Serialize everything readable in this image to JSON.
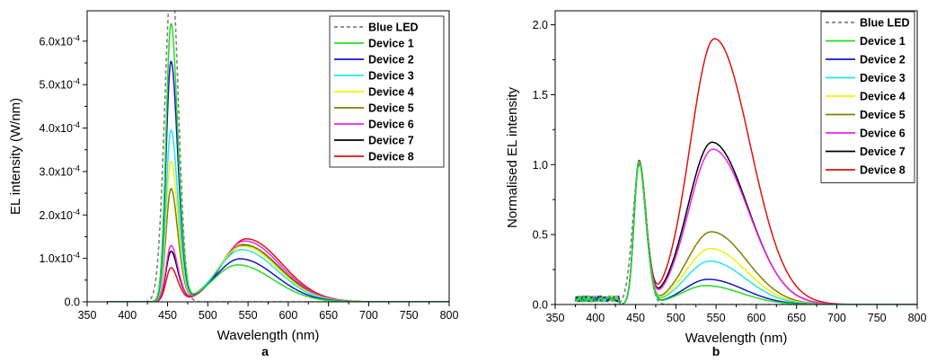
{
  "chart_data": [
    {
      "type": "line",
      "panel_label": "a",
      "xlabel": "Wavelength (nm)",
      "ylabel": "EL intensity (W/nm)",
      "xlim": [
        350,
        800
      ],
      "ylim": [
        0,
        0.00067
      ],
      "xticks": [
        350,
        400,
        450,
        500,
        550,
        600,
        650,
        700,
        750,
        800
      ],
      "yticks": [
        0,
        0.0001,
        0.0002,
        0.0003,
        0.0004,
        0.0005,
        0.0006
      ],
      "ytick_labels": [
        "0.0",
        "1.0x10",
        "2.0x10",
        "3.0x10",
        "4.0x10",
        "5.0x10",
        "6.0x10"
      ],
      "ytick_exponent": "-4",
      "legend_position": "top-right",
      "grid": false,
      "series": [
        {
          "name": "Blue LED",
          "color": "#808080",
          "dashed": true,
          "blue_peak": 0.00075,
          "green_peak": 0,
          "green_center": 550,
          "x": [
            375,
            420,
            430,
            440,
            445,
            450,
            455,
            460,
            465,
            470,
            480,
            490,
            500
          ],
          "values": [
            0,
            0,
            5e-06,
            0.00018,
            0.00042,
            0.00066,
            0.00075,
            0.00066,
            0.0004,
            0.00013,
            1e-05,
            0.0,
            0.0
          ]
        },
        {
          "name": "Device 1",
          "color": "#22dd22",
          "dashed": false,
          "blue_peak": 0.000628,
          "green_peak": 8.5e-05,
          "green_center": 537,
          "x": [
            400,
            440,
            454,
            470,
            490,
            537,
            600,
            700,
            800
          ],
          "values": [
            0,
            0.00014,
            0.000628,
            6e-05,
            1.2e-05,
            8.5e-05,
            3.5e-05,
            2e-06,
            0
          ]
        },
        {
          "name": "Device 2",
          "color": "#1515cc",
          "dashed": false,
          "blue_peak": 0.000543,
          "green_peak": 9.9e-05,
          "green_center": 540,
          "x": [
            400,
            440,
            454,
            470,
            490,
            540,
            600,
            700,
            800
          ],
          "values": [
            0,
            0.00012,
            0.000543,
            6e-05,
            1.3e-05,
            9.9e-05,
            4.5e-05,
            3e-06,
            0
          ]
        },
        {
          "name": "Device 3",
          "color": "#22e6ee",
          "dashed": false,
          "blue_peak": 0.000387,
          "green_peak": 0.00012,
          "green_center": 542,
          "x": [
            400,
            440,
            454,
            470,
            490,
            542,
            600,
            700,
            800
          ],
          "values": [
            0,
            9e-05,
            0.000387,
            5e-05,
            1.5e-05,
            0.00012,
            6e-05,
            4e-06,
            0
          ]
        },
        {
          "name": "Device 4",
          "color": "#f4f000",
          "dashed": false,
          "blue_peak": 0.000317,
          "green_peak": 0.000128,
          "green_center": 543,
          "x": [
            400,
            440,
            454,
            470,
            490,
            543,
            600,
            700,
            800
          ],
          "values": [
            0,
            7e-05,
            0.000317,
            4e-05,
            1.6e-05,
            0.000128,
            7e-05,
            5e-06,
            0
          ]
        },
        {
          "name": "Device 5",
          "color": "#808000",
          "dashed": false,
          "blue_peak": 0.000255,
          "green_peak": 0.000132,
          "green_center": 544,
          "x": [
            400,
            440,
            454,
            470,
            490,
            544,
            600,
            700,
            800
          ],
          "values": [
            0,
            6e-05,
            0.000255,
            4e-05,
            1.7e-05,
            0.000132,
            7.5e-05,
            6e-06,
            0
          ]
        },
        {
          "name": "Device 6",
          "color": "#ee22ee",
          "dashed": false,
          "blue_peak": 0.000126,
          "green_peak": 0.00014,
          "green_center": 546,
          "x": [
            400,
            440,
            454,
            470,
            490,
            546,
            600,
            700,
            800
          ],
          "values": [
            0,
            3e-05,
            0.000126,
            3e-05,
            1.8e-05,
            0.00014,
            8e-05,
            7e-06,
            0
          ]
        },
        {
          "name": "Device 7",
          "color": "#000000",
          "dashed": false,
          "blue_peak": 0.000113,
          "green_peak": 0.000131,
          "green_center": 545,
          "x": [
            400,
            440,
            454,
            470,
            490,
            545,
            600,
            700,
            800
          ],
          "values": [
            0,
            2.7e-05,
            0.000113,
            3e-05,
            1.7e-05,
            0.000131,
            7.7e-05,
            7e-06,
            0
          ]
        },
        {
          "name": "Device 8",
          "color": "#e01010",
          "dashed": false,
          "blue_peak": 7.6e-05,
          "green_peak": 0.000145,
          "green_center": 548,
          "x": [
            400,
            440,
            454,
            470,
            490,
            548,
            600,
            700,
            800
          ],
          "values": [
            0,
            1.8e-05,
            7.6e-05,
            2e-05,
            1.8e-05,
            0.000145,
            8.5e-05,
            8e-06,
            0
          ]
        }
      ]
    },
    {
      "type": "line",
      "panel_label": "b",
      "xlabel": "Wavelength (nm)",
      "ylabel": "Normalised EL intensity",
      "xlim": [
        350,
        800
      ],
      "ylim": [
        0,
        2.1
      ],
      "xticks": [
        350,
        400,
        450,
        500,
        550,
        600,
        650,
        700,
        750,
        800
      ],
      "yticks": [
        0,
        0.5,
        1.0,
        1.5,
        2.0
      ],
      "ytick_labels": [
        "0.0",
        "0.5",
        "1.0",
        "1.5",
        "2.0"
      ],
      "legend_position": "top-right",
      "grid": false,
      "series": [
        {
          "name": "Blue LED",
          "color": "#808080",
          "dashed": true,
          "blue_peak": 1.0,
          "green_peak": 0,
          "green_center": 550,
          "x": [
            375,
            430,
            445,
            455,
            465,
            480,
            500
          ],
          "values": [
            0,
            0.01,
            0.56,
            1.0,
            0.53,
            0.02,
            0
          ]
        },
        {
          "name": "Device 1",
          "color": "#22dd22",
          "dashed": false,
          "blue_peak": 1.0,
          "green_peak": 0.135,
          "green_center": 537,
          "x": [
            375,
            430,
            454,
            490,
            537,
            600,
            700,
            800
          ],
          "values": [
            0.01,
            0.05,
            1.0,
            0.06,
            0.135,
            0.055,
            0.003,
            0
          ]
        },
        {
          "name": "Device 2",
          "color": "#1515cc",
          "dashed": false,
          "blue_peak": 1.0,
          "green_peak": 0.18,
          "green_center": 540,
          "x": [
            375,
            430,
            454,
            490,
            540,
            600,
            700,
            800
          ],
          "values": [
            0.01,
            0.05,
            1.0,
            0.07,
            0.18,
            0.08,
            0.005,
            0
          ]
        },
        {
          "name": "Device 3",
          "color": "#22e6ee",
          "dashed": false,
          "blue_peak": 1.0,
          "green_peak": 0.31,
          "green_center": 542,
          "x": [
            375,
            430,
            454,
            490,
            542,
            600,
            700,
            800
          ],
          "values": [
            0.01,
            0.05,
            1.0,
            0.09,
            0.31,
            0.15,
            0.01,
            0
          ]
        },
        {
          "name": "Device 4",
          "color": "#f4f000",
          "dashed": false,
          "blue_peak": 1.0,
          "green_peak": 0.4,
          "green_center": 543,
          "x": [
            375,
            430,
            454,
            490,
            543,
            600,
            700,
            800
          ],
          "values": [
            0.01,
            0.05,
            1.0,
            0.1,
            0.4,
            0.2,
            0.015,
            0
          ]
        },
        {
          "name": "Device 5",
          "color": "#808000",
          "dashed": false,
          "blue_peak": 1.0,
          "green_peak": 0.52,
          "green_center": 544,
          "x": [
            375,
            430,
            454,
            490,
            544,
            600,
            700,
            800
          ],
          "values": [
            0.01,
            0.05,
            1.0,
            0.12,
            0.52,
            0.27,
            0.02,
            0
          ]
        },
        {
          "name": "Device 6",
          "color": "#ee22ee",
          "dashed": false,
          "blue_peak": 1.0,
          "green_peak": 1.11,
          "green_center": 546,
          "x": [
            375,
            430,
            454,
            490,
            546,
            600,
            700,
            800
          ],
          "values": [
            0.01,
            0.05,
            1.0,
            0.17,
            1.11,
            0.6,
            0.05,
            0
          ]
        },
        {
          "name": "Device 7",
          "color": "#000000",
          "dashed": false,
          "blue_peak": 1.0,
          "green_peak": 1.16,
          "green_center": 545,
          "x": [
            375,
            430,
            454,
            490,
            545,
            600,
            700,
            800
          ],
          "values": [
            0.01,
            0.05,
            1.0,
            0.17,
            1.16,
            0.62,
            0.05,
            0
          ]
        },
        {
          "name": "Device 8",
          "color": "#e01010",
          "dashed": false,
          "blue_peak": 1.0,
          "green_peak": 1.9,
          "green_center": 548,
          "x": [
            375,
            430,
            454,
            490,
            548,
            600,
            700,
            800
          ],
          "values": [
            0.04,
            0.05,
            1.0,
            0.2,
            1.9,
            1.1,
            0.1,
            0.01
          ]
        }
      ]
    }
  ]
}
